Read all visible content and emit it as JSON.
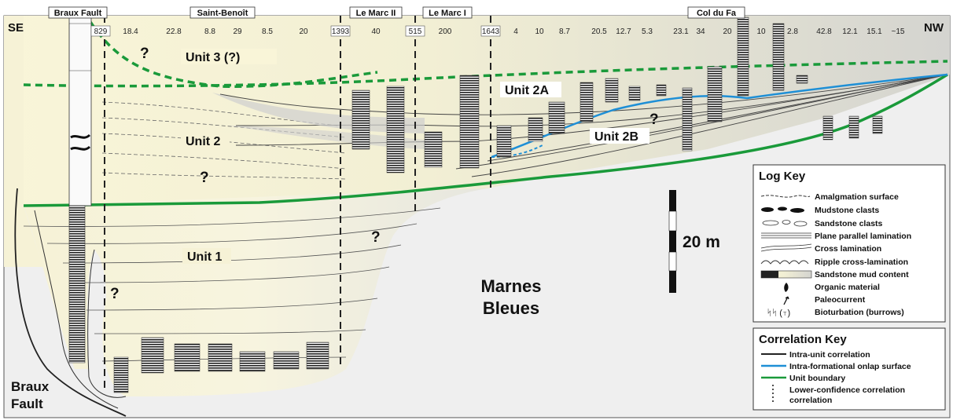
{
  "sections": [
    {
      "name": "Braux Fault"
    },
    {
      "name": "Saint-Benoît"
    },
    {
      "name": "Le Marc II"
    },
    {
      "name": "Le Marc I"
    },
    {
      "name": "Col du Fa"
    }
  ],
  "ends": {
    "left": "SE",
    "right": "NW"
  },
  "distances": [
    "829",
    "18.4",
    "22.8",
    "8.8",
    "29",
    "8.5",
    "20",
    "1393",
    "40",
    "515",
    "200",
    "1643",
    "4",
    "10",
    "8.7",
    "20.5",
    "12.7",
    "5.3",
    "23.1",
    "34",
    "20",
    "10",
    "2.8",
    "42.8",
    "12.1",
    "15.1",
    "~15"
  ],
  "units": {
    "unit3": "Unit 3 (?)",
    "unit2": "Unit 2",
    "unit2a": "Unit 2A",
    "unit2b": "Unit 2B",
    "unit1": "Unit 1"
  },
  "question_mark": "?",
  "basin_fill": {
    "line1": "Marnes",
    "line2": "Bleues"
  },
  "fault_label": {
    "line1": "Braux",
    "line2": "Fault"
  },
  "scale_bar": "20 m",
  "log_key": {
    "title": "Log Key",
    "items": [
      "Amalgmation surface",
      "Mudstone clasts",
      "Sandstone clasts",
      "Plane parallel lamination",
      "Cross lamination",
      "Ripple cross-lamination",
      "Sandstone mud content",
      "Organic material",
      "Paleocurrent",
      "Bioturbation (burrows)"
    ]
  },
  "correlation_key": {
    "title": "Correlation Key",
    "items": [
      "Intra-unit correlation",
      "Intra-formational onlap surface",
      "Unit boundary",
      "Lower-confidence correlation"
    ]
  },
  "colors": {
    "unit_boundary": "#1a9a3a",
    "onlap_surface": "#1e8fd6",
    "basin_fill": "#f6f3dc",
    "marnes": "#f0f0f0"
  }
}
